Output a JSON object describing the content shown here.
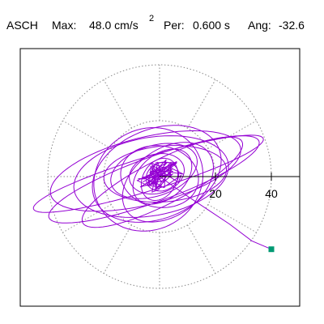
{
  "header": {
    "station": "ASCH",
    "max_label": "Max:",
    "max_value": "48.0 cm/s",
    "max_exponent": "2",
    "period_label": "Per:",
    "period_value": "0.600 s",
    "angle_label": "Ang:",
    "angle_value": "-32.6"
  },
  "colors": {
    "trace": "#9400d3",
    "marker": "#009a73",
    "grid": "#888888",
    "axis": "#000000",
    "frame": "#000000"
  },
  "chart_data": {
    "type": "scatter",
    "title": "",
    "description_kind": "polar particle-motion hodogram",
    "radial_axis": {
      "range": [
        0,
        48
      ],
      "ticks": [
        20,
        40
      ],
      "tick_labels": [
        "20",
        "40"
      ]
    },
    "grid": {
      "rings": [
        20,
        40
      ],
      "spoke_step_deg": 30,
      "visible": true
    },
    "loops": [
      {
        "a": 43.0,
        "b": 6.0,
        "angle": 17.0,
        "dx": -4.0,
        "dy": 1.0
      },
      {
        "a": 40.0,
        "b": 8.0,
        "angle": 20.0,
        "dx": -2.0,
        "dy": -1.0
      },
      {
        "a": 35.0,
        "b": 12.0,
        "angle": 14.0,
        "dx": -5.0,
        "dy": 2.0
      },
      {
        "a": 32.0,
        "b": 8.0,
        "angle": 27.0,
        "dx": 1.0,
        "dy": -2.0
      },
      {
        "a": 28.0,
        "b": 14.0,
        "angle": 10.0,
        "dx": -3.0,
        "dy": 0.0
      },
      {
        "a": 24.0,
        "b": 16.0,
        "angle": 22.0,
        "dx": -1.0,
        "dy": 1.0
      },
      {
        "a": 22.0,
        "b": 10.0,
        "angle": 5.0,
        "dx": 2.0,
        "dy": 1.0
      },
      {
        "a": 20.0,
        "b": 18.0,
        "angle": 30.0,
        "dx": -4.0,
        "dy": -1.0
      },
      {
        "a": 18.0,
        "b": 12.0,
        "angle": 35.0,
        "dx": 3.0,
        "dy": -2.0
      },
      {
        "a": 16.0,
        "b": 9.0,
        "angle": 18.0,
        "dx": -2.0,
        "dy": 2.0
      },
      {
        "a": 14.0,
        "b": 11.0,
        "angle": -10.0,
        "dx": 0.0,
        "dy": 0.0
      },
      {
        "a": 12.0,
        "b": 8.0,
        "angle": 40.0,
        "dx": 1.0,
        "dy": 0.0
      },
      {
        "a": 10.0,
        "b": 7.0,
        "angle": 15.0,
        "dx": -1.0,
        "dy": 1.0
      },
      {
        "a": 8.0,
        "b": 6.0,
        "angle": 60.0,
        "dx": 0.0,
        "dy": -1.0
      },
      {
        "a": 6.0,
        "b": 5.0,
        "angle": 25.0,
        "dx": 1.0,
        "dy": 0.0
      }
    ],
    "dense_core": {
      "count": 60,
      "radius": 7.0,
      "angle": 20.0
    },
    "tail": [
      [
        10.0,
        -7.0
      ],
      [
        25.0,
        -17.0
      ],
      [
        33.0,
        -23.0
      ],
      [
        40.0,
        -26.0
      ]
    ],
    "end_marker": [
      40.0,
      -26.0
    ]
  }
}
